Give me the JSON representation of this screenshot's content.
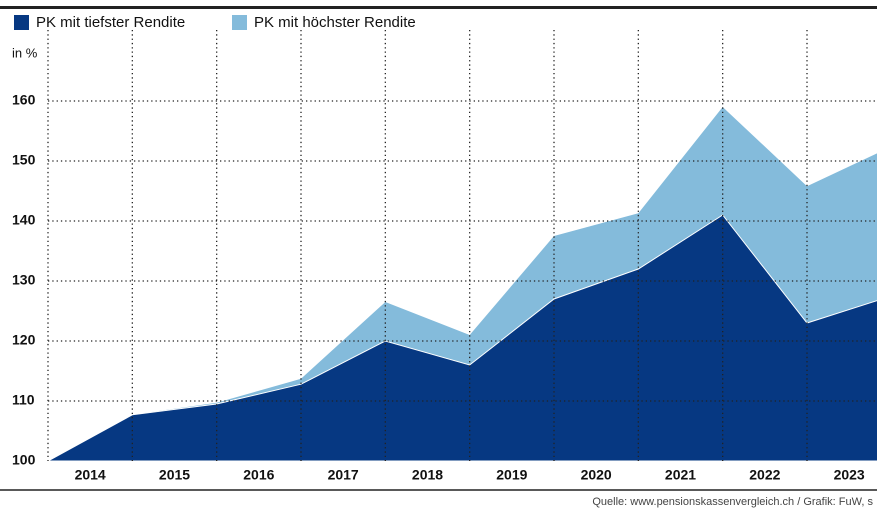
{
  "chart_data": {
    "type": "area",
    "y_label": "in %",
    "source": "Quelle: www.pensionskassenvergleich.ch / Grafik: FuW, s",
    "x": [
      2013.5,
      2014.5,
      2015.5,
      2016.5,
      2017.5,
      2018.5,
      2019.5,
      2020.5,
      2021.5,
      2022.5,
      2023.5
    ],
    "series": [
      {
        "name": "PK mit höchster Rendite",
        "color": "#84bbdb",
        "values": [
          100,
          107.7,
          109.7,
          113.7,
          126.5,
          121,
          137.5,
          141.3,
          159,
          145.8,
          152.4
        ]
      },
      {
        "name": "PK mit tiefster Rendite",
        "color": "#063882",
        "values": [
          100,
          107.7,
          109.5,
          112.8,
          120,
          116,
          127,
          132,
          141,
          123,
          127.5
        ]
      }
    ],
    "xlim": [
      2013.5,
      2023.33
    ],
    "xticks": [
      2014,
      2015,
      2016,
      2017,
      2018,
      2019,
      2020,
      2021,
      2022,
      2023
    ],
    "ylim": [
      100,
      170
    ],
    "yticks": [
      100,
      110,
      120,
      130,
      140,
      150,
      160
    ],
    "grid": true,
    "legend_order": [
      1,
      0
    ]
  }
}
